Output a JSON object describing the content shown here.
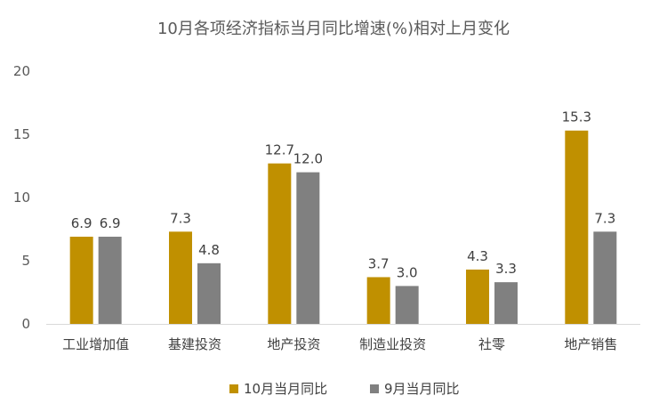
{
  "chart_data": {
    "type": "bar",
    "title": "10月各项经济指标当月同比增速(%)相对上月变化",
    "xlabel": "",
    "ylabel": "",
    "ylim": [
      0,
      20
    ],
    "yticks": [
      0,
      5,
      10,
      15,
      20
    ],
    "grid": false,
    "legend_position": "bottom",
    "categories": [
      "工业增加值",
      "基建投资",
      "地产投资",
      "制造业投资",
      "社零",
      "地产销售"
    ],
    "series": [
      {
        "name": "10月当月同比",
        "color": "#c09000",
        "values": [
          6.9,
          7.3,
          12.7,
          3.7,
          4.3,
          15.3
        ],
        "labels": [
          "6.9",
          "7.3",
          "12.7",
          "3.7",
          "4.3",
          "15.3"
        ]
      },
      {
        "name": "9月当月同比",
        "color": "#808080",
        "values": [
          6.9,
          4.8,
          12.0,
          3.0,
          3.3,
          7.3
        ],
        "labels": [
          "6.9",
          "4.8",
          "12.0",
          "3.0",
          "3.3",
          "7.3"
        ]
      }
    ]
  }
}
